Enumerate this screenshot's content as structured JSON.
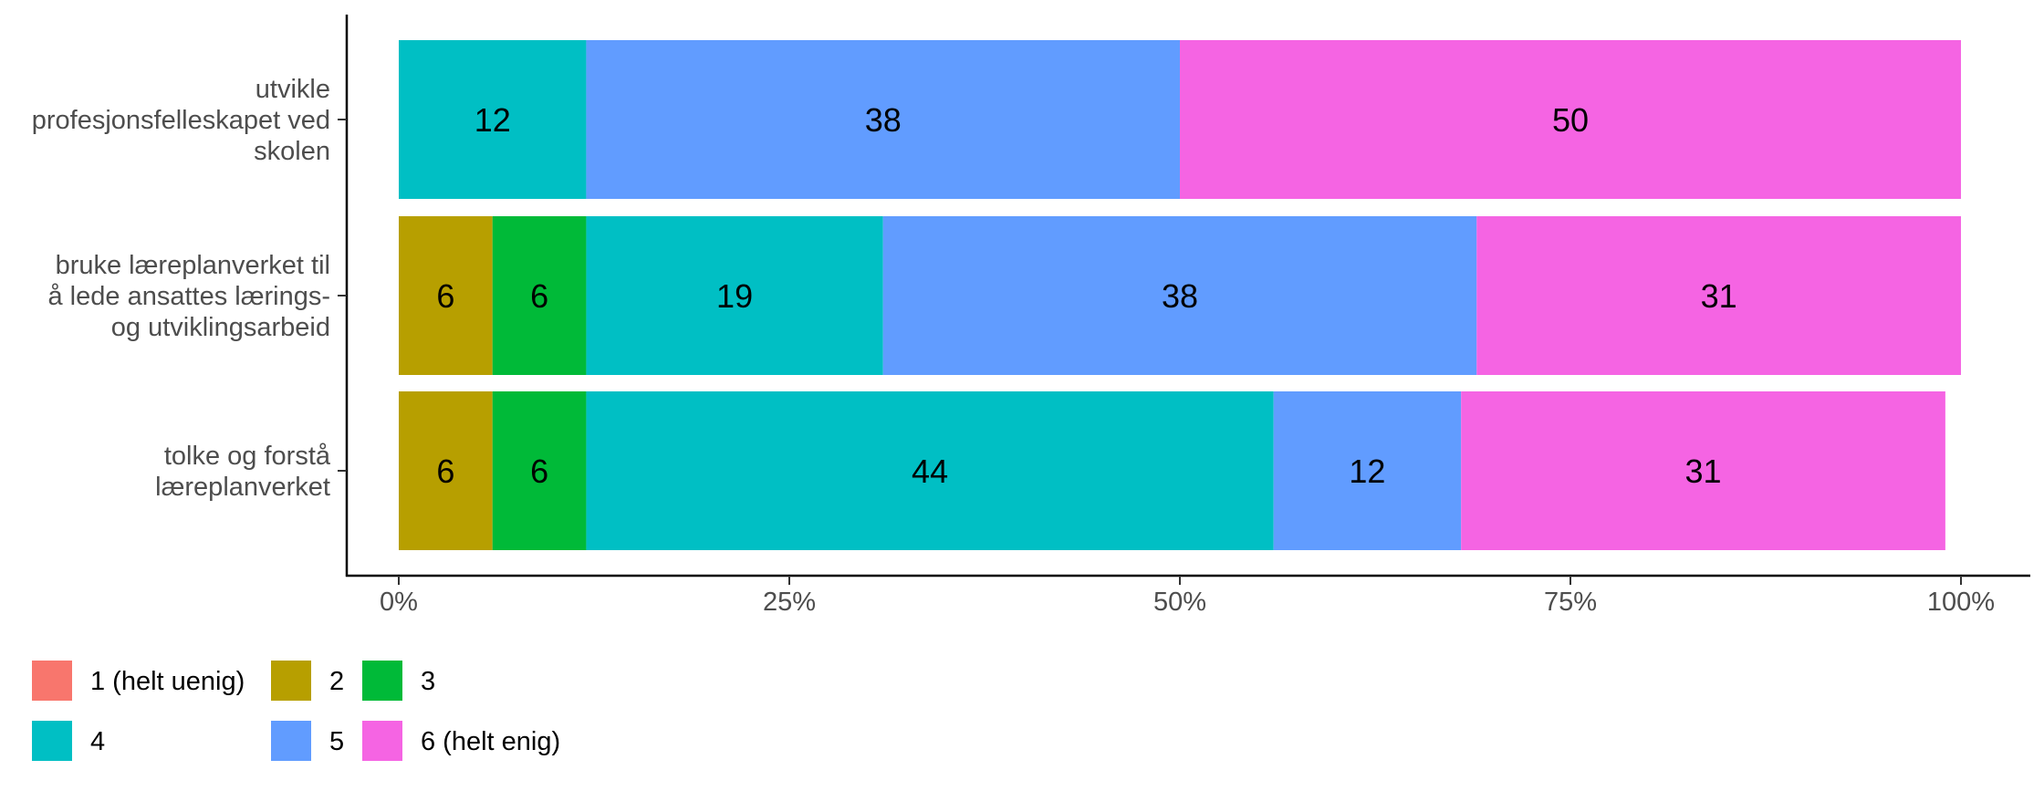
{
  "chart_data": {
    "type": "bar",
    "orientation": "horizontal",
    "stacked": true,
    "categories": [
      [
        "utvikle",
        "profesjonsfelleskapet ved",
        "skolen"
      ],
      [
        "bruke læreplanverket til",
        "å lede ansattes lærings-",
        "og utviklingsarbeid"
      ],
      [
        "tolke og forstå",
        "læreplanverket"
      ]
    ],
    "series": [
      {
        "name": "1 (helt uenig)",
        "color": "#F8766D",
        "values": [
          0,
          0,
          0
        ]
      },
      {
        "name": "2",
        "color": "#B79F00",
        "values": [
          0,
          6,
          6
        ]
      },
      {
        "name": "3",
        "color": "#00BA38",
        "values": [
          0,
          6,
          6
        ]
      },
      {
        "name": "4",
        "color": "#00BFC4",
        "values": [
          12,
          19,
          44
        ]
      },
      {
        "name": "5",
        "color": "#619CFF",
        "values": [
          38,
          38,
          12
        ]
      },
      {
        "name": "6 (helt enig)",
        "color": "#F564E3",
        "values": [
          50,
          31,
          31
        ]
      }
    ],
    "x_ticks": [
      "0%",
      "25%",
      "50%",
      "75%",
      "100%"
    ],
    "xlim": [
      0,
      100
    ],
    "xlabel": "",
    "ylabel": "",
    "grid": false,
    "legend_position": "bottom-left"
  }
}
